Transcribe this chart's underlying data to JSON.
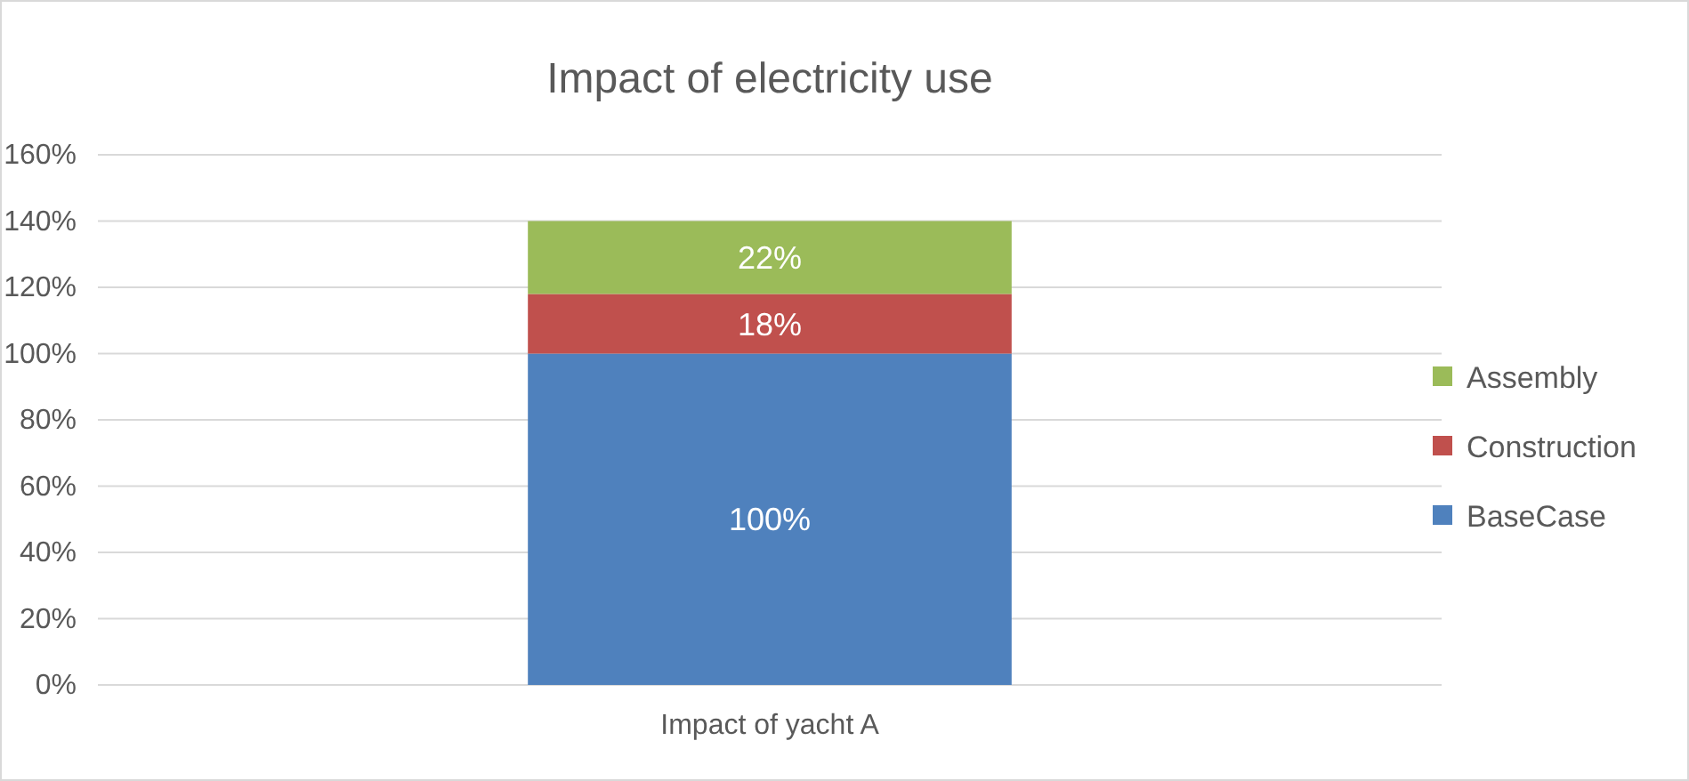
{
  "chart_data": {
    "type": "bar",
    "title": "Impact of electricity use",
    "categories": [
      "Impact of yacht A"
    ],
    "stacked": true,
    "series": [
      {
        "name": "BaseCase",
        "color": "#4f81bd",
        "values": [
          100
        ],
        "value_labels": [
          "100%"
        ]
      },
      {
        "name": "Construction",
        "color": "#c0504d",
        "values": [
          18
        ],
        "value_labels": [
          "18%"
        ]
      },
      {
        "name": "Assembly",
        "color": "#9bbb59",
        "values": [
          22
        ],
        "value_labels": [
          "22%"
        ]
      }
    ],
    "ylim": [
      0,
      160
    ],
    "yticks": [
      {
        "value": 0,
        "label": "0%"
      },
      {
        "value": 20,
        "label": "20%"
      },
      {
        "value": 40,
        "label": "40%"
      },
      {
        "value": 60,
        "label": "60%"
      },
      {
        "value": 80,
        "label": "80%"
      },
      {
        "value": 100,
        "label": "100%"
      },
      {
        "value": 120,
        "label": "120%"
      },
      {
        "value": 140,
        "label": "140%"
      },
      {
        "value": 160,
        "label": "160%"
      }
    ],
    "grid": "y",
    "legend": "right"
  }
}
